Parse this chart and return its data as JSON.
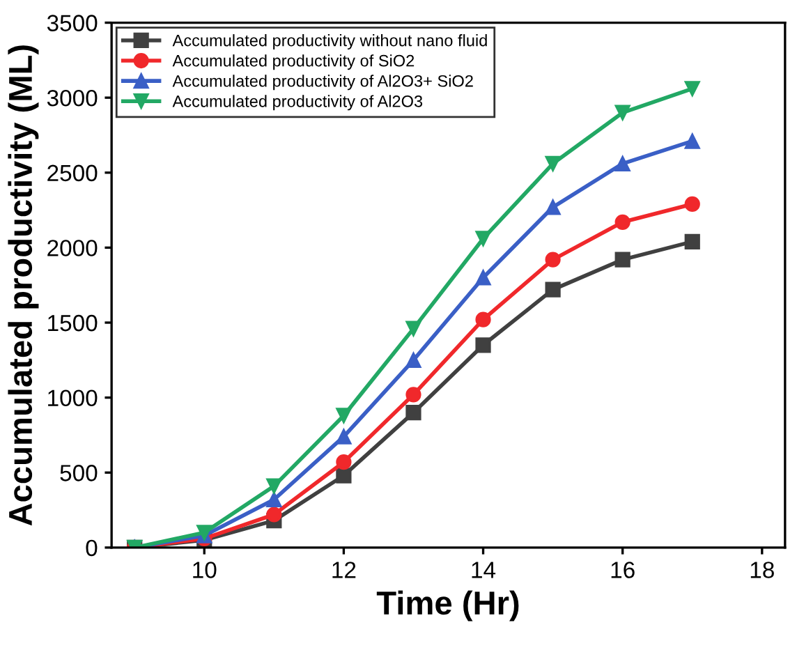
{
  "chart_data": {
    "type": "line",
    "xlabel": "Time (Hr)",
    "ylabel": "Accumulated productivity (ML)",
    "x": [
      9,
      10,
      11,
      12,
      13,
      14,
      15,
      16,
      17
    ],
    "series": [
      {
        "name": "Accumulated productivity without nano fluid",
        "color": "#404040",
        "marker": "square",
        "values": [
          0,
          50,
          180,
          480,
          900,
          1350,
          1720,
          1920,
          2040
        ]
      },
      {
        "name": "Accumulated productivity of SiO2",
        "color": "#f0282b",
        "marker": "circle",
        "values": [
          0,
          60,
          220,
          570,
          1020,
          1520,
          1920,
          2170,
          2290
        ]
      },
      {
        "name": "Accumulated productivity of Al2O3+ SiO2",
        "color": "#3a5fc6",
        "marker": "triangle",
        "values": [
          0,
          80,
          320,
          740,
          1250,
          1800,
          2270,
          2560,
          2710
        ]
      },
      {
        "name": "Accumulated productivity of Al2O3",
        "color": "#22a864",
        "marker": "triangle_down",
        "values": [
          0,
          100,
          410,
          880,
          1460,
          2060,
          2560,
          2900,
          3060
        ]
      }
    ],
    "xlim": [
      8.67,
      18.33
    ],
    "xticks": [
      10,
      12,
      14,
      16,
      18
    ],
    "ylim": [
      0,
      3500
    ],
    "yticks": [
      0,
      500,
      1000,
      1500,
      2000,
      2500,
      3000,
      3500
    ],
    "grid": false,
    "legend": "top left",
    "line_style": "solid"
  }
}
